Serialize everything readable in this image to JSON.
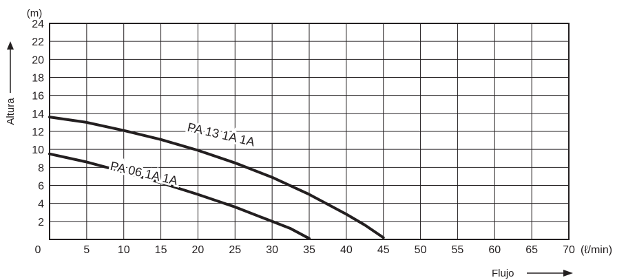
{
  "chart_data": {
    "type": "line",
    "title": "",
    "xlabel": "Flujo",
    "ylabel": "Altura",
    "x_unit": "(ℓ/min)",
    "y_unit": "(m)",
    "xlim": [
      0,
      70
    ],
    "ylim": [
      0,
      24
    ],
    "x_ticks": [
      "0",
      "5",
      "10",
      "15",
      "20",
      "25",
      "30",
      "35",
      "40",
      "45",
      "50",
      "55",
      "60",
      "65",
      "70"
    ],
    "y_ticks": [
      "2",
      "4",
      "6",
      "8",
      "10",
      "12",
      "14",
      "16",
      "18",
      "20",
      "22",
      "24"
    ],
    "grid": true,
    "series": [
      {
        "name": "PA 13 1A 1A",
        "x": [
          0,
          5,
          10,
          15,
          20,
          25,
          30,
          35,
          40,
          42.5,
          45
        ],
        "y": [
          13.6,
          13.0,
          12.1,
          11.1,
          9.9,
          8.5,
          6.9,
          5.0,
          2.8,
          1.6,
          0.2
        ]
      },
      {
        "name": "PA 06 1A  1A",
        "x": [
          0,
          5,
          10,
          15,
          20,
          25,
          30,
          32.5,
          35
        ],
        "y": [
          9.5,
          8.6,
          7.5,
          6.3,
          5.0,
          3.6,
          2.0,
          1.2,
          0.1
        ]
      }
    ],
    "line_color": "#231f20",
    "grid_color": "#231f20"
  }
}
